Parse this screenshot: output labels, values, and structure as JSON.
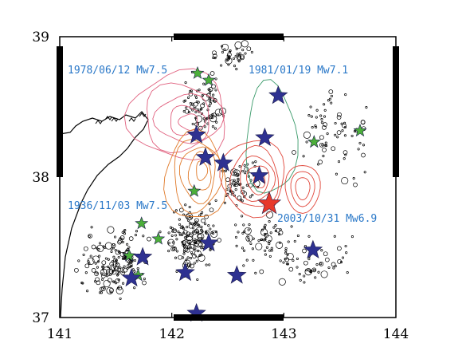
{
  "map": {
    "lon_ticks": [
      "141",
      "142",
      "143",
      "144"
    ],
    "lat_ticks": [
      "37",
      "38",
      "39"
    ],
    "lon_range": [
      141,
      144
    ],
    "lat_range": [
      37,
      39
    ]
  },
  "events": [
    {
      "label": "1978/06/12 Mw7.5",
      "lon": 142.2,
      "lat": 38.15
    },
    {
      "label": "1981/01/19 Mw7.1",
      "lon": 142.9,
      "lat": 38.6
    },
    {
      "label": "1936/11/03 Mw7.5",
      "lon": 142.1,
      "lat": 37.5
    },
    {
      "label": "2003/10/31 Mw6.9",
      "lon": 142.85,
      "lat": 37.8
    }
  ],
  "colors": {
    "frame": "#000000",
    "blue_star": "#2e3191",
    "green_star": "#4caf3a",
    "red_star": "#e8382a",
    "label": "#2a78c8",
    "contour_pink": "#e0607e",
    "contour_green": "#3a9a6a",
    "contour_orange": "#e07a2a",
    "contour_red": "#e0463a"
  },
  "stars": {
    "blue": [
      [
        142.22,
        38.3
      ],
      [
        142.3,
        38.14
      ],
      [
        142.46,
        38.1
      ],
      [
        142.95,
        38.58
      ],
      [
        142.83,
        38.28
      ],
      [
        142.78,
        38.01
      ],
      [
        141.74,
        37.43
      ],
      [
        142.33,
        37.53
      ],
      [
        142.12,
        37.32
      ],
      [
        142.58,
        37.3
      ],
      [
        141.64,
        37.28
      ],
      [
        142.22,
        37.03
      ],
      [
        143.26,
        37.48
      ]
    ],
    "green": [
      [
        142.23,
        38.74
      ],
      [
        142.33,
        38.69
      ],
      [
        143.27,
        38.25
      ],
      [
        143.68,
        38.33
      ],
      [
        142.2,
        37.9
      ],
      [
        141.73,
        37.67
      ],
      [
        141.88,
        37.56
      ],
      [
        141.62,
        37.44
      ],
      [
        141.7,
        37.3
      ]
    ],
    "red": [
      [
        142.87,
        37.81
      ]
    ]
  }
}
